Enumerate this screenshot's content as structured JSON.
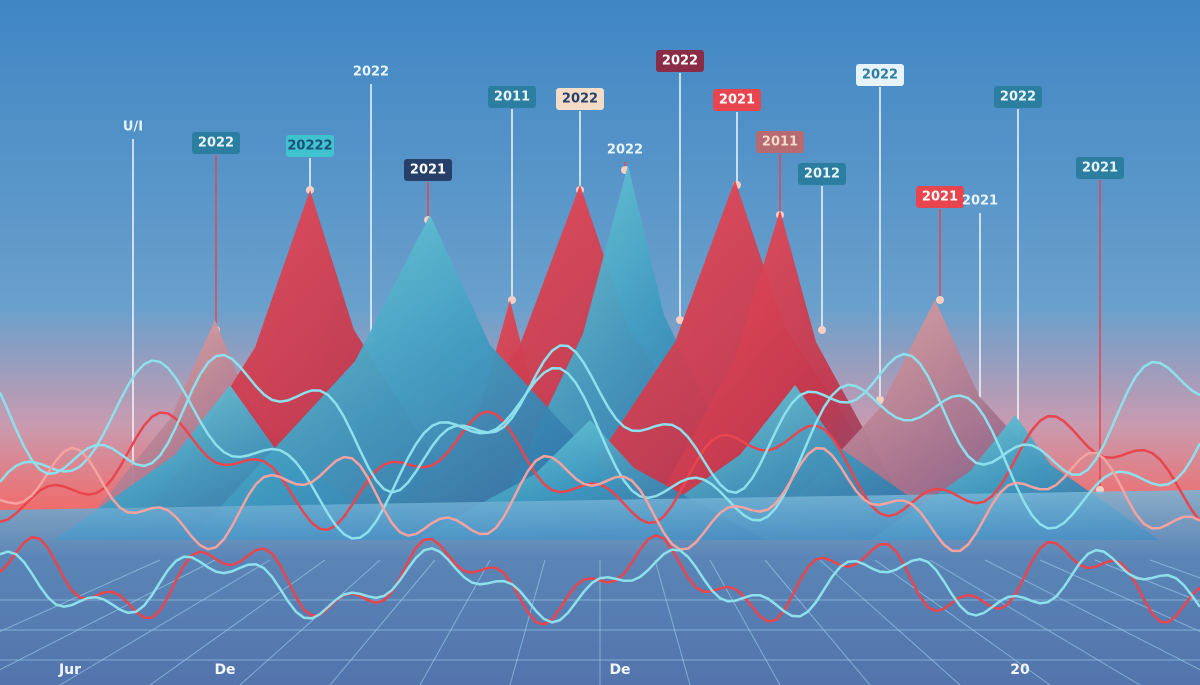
{
  "tags": [
    {
      "label": "U/I"
    },
    {
      "label": "2022"
    },
    {
      "label": "20222"
    },
    {
      "label": "2022"
    },
    {
      "label": "2021"
    },
    {
      "label": "2011"
    },
    {
      "label": "2022"
    },
    {
      "label": "2022"
    },
    {
      "label": "2022"
    },
    {
      "label": "2021"
    },
    {
      "label": "2011"
    },
    {
      "label": "2012"
    },
    {
      "label": "2022"
    },
    {
      "label": "2021"
    },
    {
      "label": "2021"
    },
    {
      "label": "2022"
    },
    {
      "label": "2021"
    }
  ],
  "axis_labels": [
    {
      "label": "Jur"
    },
    {
      "label": "De"
    },
    {
      "label": "De"
    },
    {
      "label": "20"
    }
  ]
}
